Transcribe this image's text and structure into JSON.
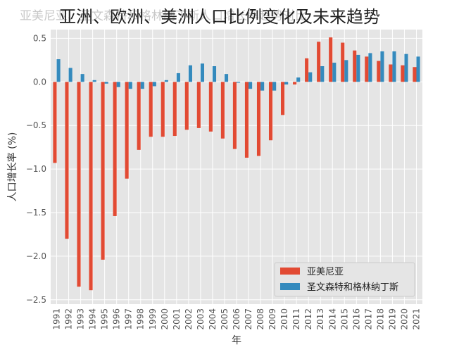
{
  "chart_data": {
    "type": "bar",
    "title": "亚洲、欧洲、美洲人口比例变化及未来趋势",
    "ghost_title": "亚美尼亚、圣文森特和格林纳丁斯人口增长率趋势对比",
    "xlabel": "年",
    "ylabel": "人口增长率 (%)",
    "ylim": [
      -2.55,
      0.6
    ],
    "yticks": [
      0.5,
      0.0,
      -0.5,
      -1.0,
      -1.5,
      -2.0,
      -2.5
    ],
    "ytick_labels": [
      "0.5",
      "0.0",
      "−0.5",
      "−1.0",
      "−1.5",
      "−2.0",
      "−2.5"
    ],
    "grid": true,
    "legend_position": "bottom-right",
    "categories": [
      "1991",
      "1992",
      "1993",
      "1994",
      "1995",
      "1996",
      "1997",
      "1998",
      "1999",
      "2000",
      "2001",
      "2002",
      "2003",
      "2004",
      "2005",
      "2006",
      "2007",
      "2008",
      "2009",
      "2010",
      "2011",
      "2012",
      "2013",
      "2014",
      "2015",
      "2016",
      "2017",
      "2018",
      "2019",
      "2020",
      "2021"
    ],
    "series": [
      {
        "name": "亚美尼亚",
        "color": "#E24A33",
        "values": [
          -0.93,
          -1.8,
          -2.35,
          -2.39,
          -2.04,
          -1.54,
          -1.11,
          -0.78,
          -0.63,
          -0.63,
          -0.62,
          -0.55,
          -0.53,
          -0.57,
          -0.65,
          -0.77,
          -0.87,
          -0.85,
          -0.67,
          -0.38,
          -0.03,
          0.27,
          0.46,
          0.51,
          0.45,
          0.36,
          0.29,
          0.24,
          0.2,
          0.19,
          0.17
        ]
      },
      {
        "name": "圣文森特和格林纳丁斯",
        "color": "#348ABD",
        "values": [
          0.26,
          0.16,
          0.09,
          0.02,
          -0.02,
          -0.06,
          -0.08,
          -0.08,
          -0.05,
          0.02,
          0.1,
          0.19,
          0.21,
          0.18,
          0.09,
          -0.01,
          -0.08,
          -0.1,
          -0.1,
          -0.03,
          0.05,
          0.11,
          0.18,
          0.22,
          0.25,
          0.31,
          0.33,
          0.35,
          0.35,
          0.32,
          0.29
        ]
      }
    ]
  }
}
